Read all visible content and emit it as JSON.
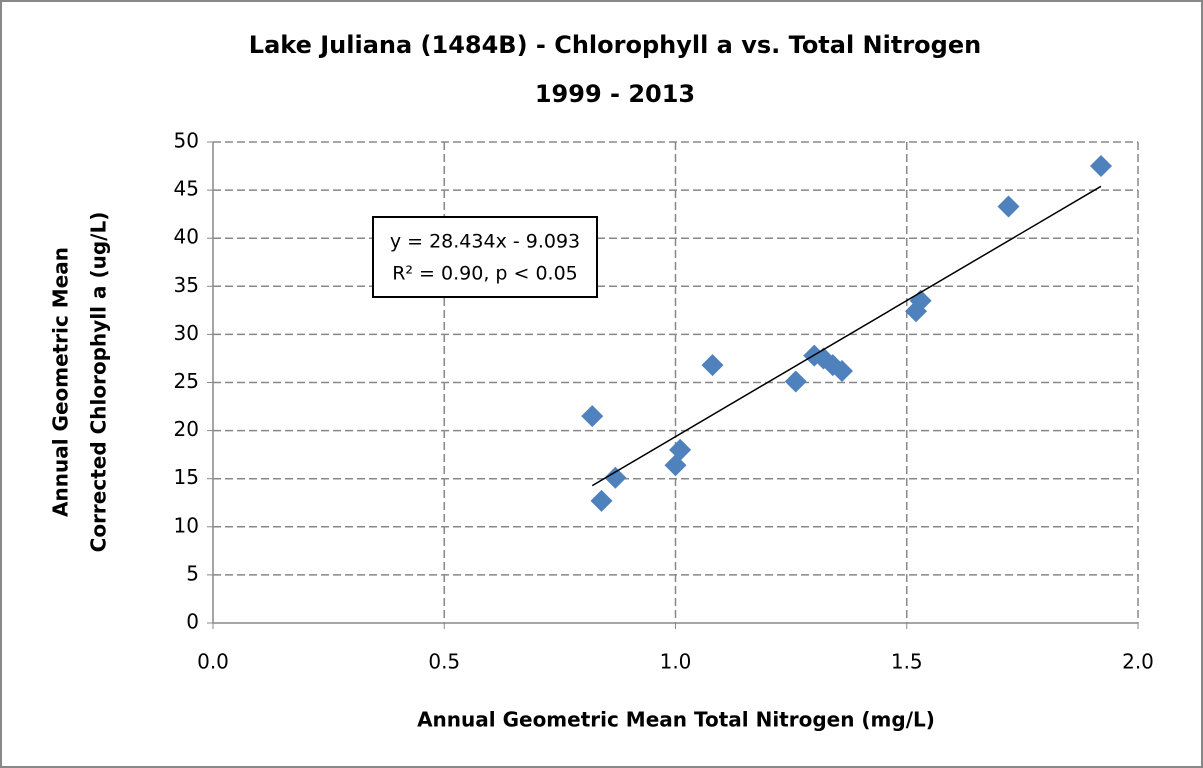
{
  "chart_data": {
    "type": "scatter",
    "title": "Lake Juliana (1484B) - Chlorophyll a vs. Total Nitrogen",
    "subtitle": "1999 - 2013",
    "xlabel": "Annual Geometric Mean Total Nitrogen (mg/L)",
    "ylabel": [
      "Annual Geometric Mean",
      "Corrected Chlorophyll a (ug/L)"
    ],
    "annotation": [
      "y = 28.434x - 9.093",
      "R² = 0.90, p < 0.05"
    ],
    "x": [
      0.82,
      0.84,
      0.87,
      1.0,
      1.01,
      1.08,
      1.26,
      1.3,
      1.32,
      1.34,
      1.36,
      1.52,
      1.53,
      1.72,
      1.92
    ],
    "values": [
      21.5,
      12.7,
      15.1,
      16.4,
      18.0,
      26.8,
      25.1,
      27.8,
      27.5,
      26.8,
      26.2,
      32.4,
      33.5,
      43.3,
      47.5
    ],
    "color": "#4f81bd",
    "trendline": true,
    "xlim": [
      0,
      2
    ],
    "xticks": [
      {
        "value": 0,
        "label": "0.0"
      },
      {
        "value": 0.5,
        "label": "0.5"
      },
      {
        "value": 1,
        "label": "1.0"
      },
      {
        "value": 1.5,
        "label": "1.5"
      },
      {
        "value": 2,
        "label": "2.0"
      }
    ],
    "ylim": [
      0,
      50
    ],
    "yticks": [
      0,
      5,
      10,
      15,
      20,
      25,
      30,
      35,
      40,
      45,
      50
    ],
    "grid": true
  }
}
